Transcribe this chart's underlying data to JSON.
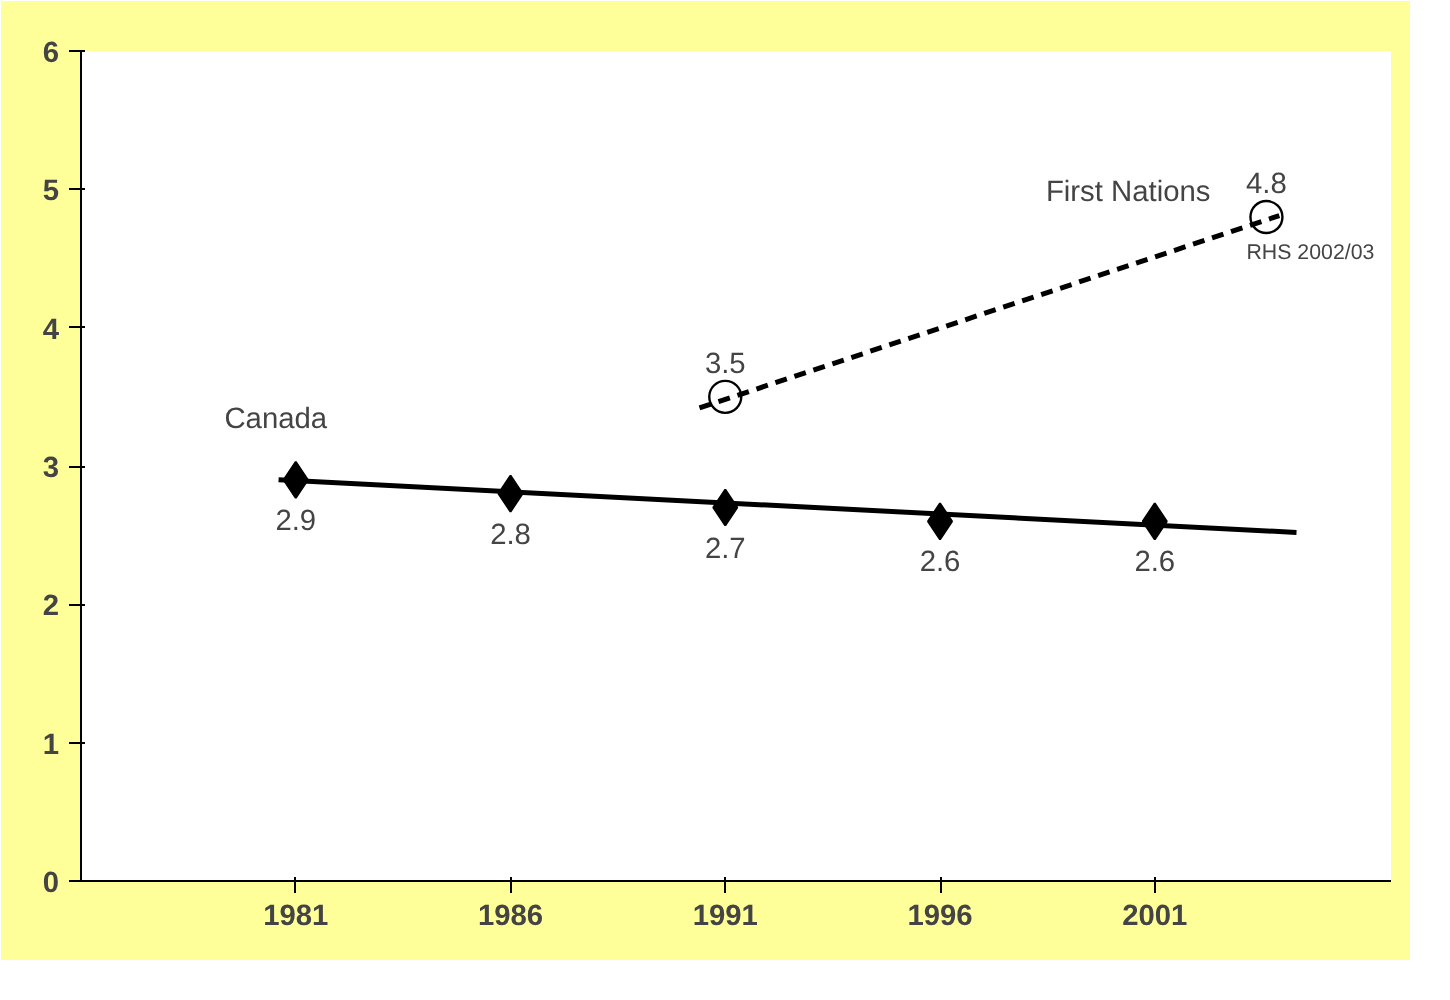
{
  "chart_data": {
    "type": "line",
    "series": [
      {
        "name": "Canada",
        "type": "scatter",
        "marker": "diamond",
        "color": "#000000",
        "x": [
          1981,
          1986,
          1991,
          1996,
          2001
        ],
        "values": [
          2.9,
          2.8,
          2.7,
          2.6,
          2.6
        ],
        "value_labels": [
          "2.9",
          "2.8",
          "2.7",
          "2.6",
          "2.6"
        ]
      },
      {
        "line_style": "solid",
        "color": "#000000",
        "x": [
          1980.6,
          2004.3
        ],
        "values": [
          2.9,
          2.52
        ]
      },
      {
        "name": "First Nations",
        "type": "scatter",
        "marker": "circle",
        "color": "#000000",
        "x": [
          1991,
          2003.6
        ],
        "values": [
          3.5,
          4.8
        ],
        "value_labels": [
          "3.5",
          "4.8"
        ]
      },
      {
        "line_style": "dashed",
        "color": "#000000",
        "x": [
          1990.4,
          2003.9
        ],
        "values": [
          3.42,
          4.81
        ]
      }
    ],
    "annotations": [
      {
        "text": "RHS 2002/03",
        "x": 2003.6,
        "y": 4.8
      }
    ],
    "xlim": [
      1976,
      2006.5
    ],
    "xticks": [
      1981,
      1986,
      1991,
      1996,
      2001
    ],
    "ylim": [
      0,
      6
    ],
    "yticks": [
      0,
      1,
      2,
      3,
      4,
      5,
      6
    ],
    "grid": false
  }
}
